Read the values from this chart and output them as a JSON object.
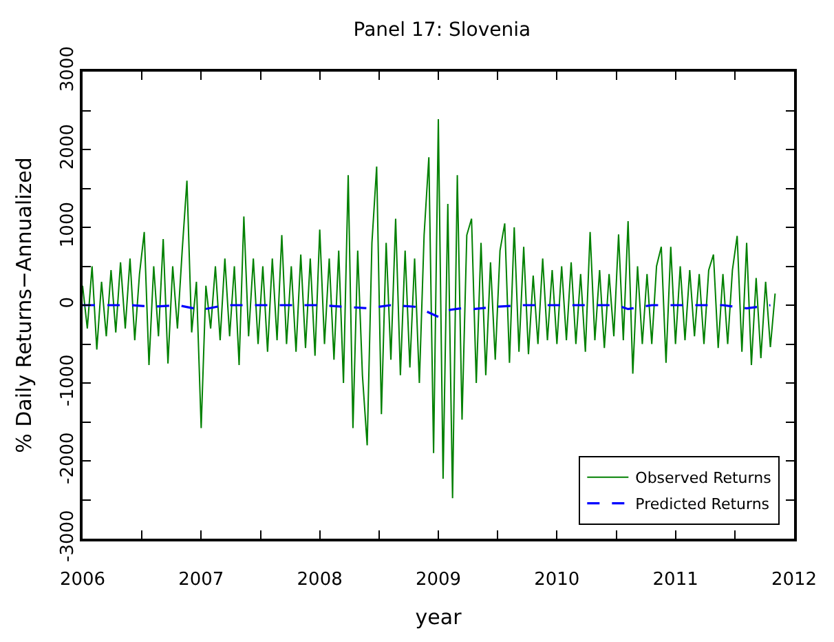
{
  "chart_data": {
    "type": "line",
    "title": "Panel 17: Slovenia",
    "xlabel": "year",
    "ylabel": "% Daily Returns−Annualized",
    "xlim": [
      2006,
      2012
    ],
    "ylim": [
      -3000,
      3000
    ],
    "xticks": [
      2006,
      {
        "value": 2006.5,
        "label": null
      },
      2007,
      {
        "value": 2007.5,
        "label": null
      },
      2008,
      {
        "value": 2008.5,
        "label": null
      },
      2009,
      {
        "value": 2009.5,
        "label": null
      },
      2010,
      {
        "value": 2010.5,
        "label": null
      },
      2011,
      {
        "value": 2011.5,
        "label": null
      },
      2012
    ],
    "yticks": [
      -3000,
      {
        "value": -2500,
        "label": null
      },
      -2000,
      {
        "value": -1500,
        "label": null
      },
      -1000,
      {
        "value": -500,
        "label": null
      },
      0,
      {
        "value": 500,
        "label": null
      },
      1000,
      {
        "value": 1500,
        "label": null
      },
      2000,
      {
        "value": 2500,
        "label": null
      },
      3000
    ],
    "legend": "bottom right",
    "marker": "none",
    "series": [
      {
        "name": "Observed Returns",
        "color": "#008000",
        "line_style": "solid",
        "x": [
          2006.0,
          2006.04,
          2006.08,
          2006.12,
          2006.16,
          2006.2,
          2006.24,
          2006.28,
          2006.32,
          2006.36,
          2006.4,
          2006.44,
          2006.48,
          2006.52,
          2006.56,
          2006.6,
          2006.64,
          2006.68,
          2006.72,
          2006.76,
          2006.8,
          2006.84,
          2006.88,
          2006.92,
          2006.96,
          2007.0,
          2007.04,
          2007.08,
          2007.12,
          2007.16,
          2007.2,
          2007.24,
          2007.28,
          2007.32,
          2007.36,
          2007.4,
          2007.44,
          2007.48,
          2007.52,
          2007.56,
          2007.6,
          2007.64,
          2007.68,
          2007.72,
          2007.76,
          2007.8,
          2007.84,
          2007.88,
          2007.92,
          2007.96,
          2008.0,
          2008.04,
          2008.08,
          2008.12,
          2008.16,
          2008.2,
          2008.24,
          2008.28,
          2008.32,
          2008.36,
          2008.4,
          2008.44,
          2008.48,
          2008.52,
          2008.56,
          2008.6,
          2008.64,
          2008.68,
          2008.72,
          2008.76,
          2008.8,
          2008.84,
          2008.88,
          2008.92,
          2008.96,
          2009.0,
          2009.04,
          2009.08,
          2009.12,
          2009.16,
          2009.2,
          2009.24,
          2009.28,
          2009.32,
          2009.36,
          2009.4,
          2009.44,
          2009.48,
          2009.52,
          2009.56,
          2009.6,
          2009.64,
          2009.68,
          2009.72,
          2009.76,
          2009.8,
          2009.84,
          2009.88,
          2009.92,
          2009.96,
          2010.0,
          2010.04,
          2010.08,
          2010.12,
          2010.16,
          2010.2,
          2010.24,
          2010.28,
          2010.32,
          2010.36,
          2010.4,
          2010.44,
          2010.48,
          2010.52,
          2010.56,
          2010.6,
          2010.64,
          2010.68,
          2010.72,
          2010.76,
          2010.8,
          2010.84,
          2010.88,
          2010.92,
          2010.96,
          2011.0,
          2011.04,
          2011.08,
          2011.12,
          2011.16,
          2011.2,
          2011.24,
          2011.28,
          2011.32,
          2011.36,
          2011.4,
          2011.44,
          2011.48,
          2011.52,
          2011.56,
          2011.6,
          2011.64,
          2011.68,
          2011.72,
          2011.76,
          2011.8,
          2011.84
        ],
        "values": [
          250,
          -300,
          500,
          -570,
          300,
          -400,
          450,
          -350,
          550,
          -300,
          600,
          -450,
          400,
          940,
          -770,
          500,
          -400,
          850,
          -750,
          500,
          -300,
          700,
          1600,
          -350,
          300,
          -1580,
          250,
          -300,
          500,
          -450,
          600,
          -400,
          500,
          -770,
          1140,
          -400,
          600,
          -500,
          500,
          -600,
          600,
          -450,
          900,
          -500,
          500,
          -600,
          650,
          -550,
          600,
          -650,
          970,
          -500,
          600,
          -700,
          700,
          -1000,
          1670,
          -1580,
          700,
          -900,
          -1800,
          800,
          1780,
          -1400,
          800,
          -700,
          1110,
          -900,
          700,
          -800,
          600,
          -1000,
          900,
          1900,
          -1900,
          2390,
          -2230,
          1300,
          -2480,
          1670,
          -1470,
          900,
          1110,
          -1000,
          800,
          -900,
          550,
          -700,
          700,
          1050,
          -740,
          1000,
          -600,
          750,
          -630,
          380,
          -500,
          600,
          -450,
          450,
          -500,
          500,
          -450,
          550,
          -500,
          400,
          -600,
          940,
          -450,
          450,
          -550,
          400,
          -400,
          910,
          -450,
          1080,
          -880,
          500,
          -500,
          400,
          -500,
          500,
          750,
          -740,
          750,
          -500,
          500,
          -450,
          450,
          -400,
          400,
          -500,
          450,
          650,
          -550,
          400,
          -500,
          450,
          890,
          -600,
          800,
          -770,
          350,
          -680,
          300,
          -540,
          150
        ]
      },
      {
        "name": "Predicted Returns",
        "color": "#0000ff",
        "line_style": "dashed",
        "x": [
          2006.0,
          2006.2,
          2006.4,
          2006.6,
          2006.8,
          2007.0,
          2007.2,
          2007.4,
          2007.6,
          2007.8,
          2008.0,
          2008.2,
          2008.4,
          2008.6,
          2008.8,
          2008.9,
          2009.0,
          2009.1,
          2009.2,
          2009.3,
          2009.5,
          2009.7,
          2009.9,
          2010.1,
          2010.3,
          2010.5,
          2010.6,
          2010.8,
          2011.0,
          2011.2,
          2011.4,
          2011.6,
          2011.8
        ],
        "values": [
          0,
          0,
          0,
          -20,
          0,
          -60,
          0,
          0,
          0,
          0,
          0,
          -20,
          -40,
          0,
          -20,
          -80,
          -150,
          -60,
          -40,
          -50,
          -20,
          0,
          0,
          0,
          0,
          0,
          -50,
          0,
          0,
          0,
          0,
          -40,
          0
        ]
      }
    ]
  }
}
